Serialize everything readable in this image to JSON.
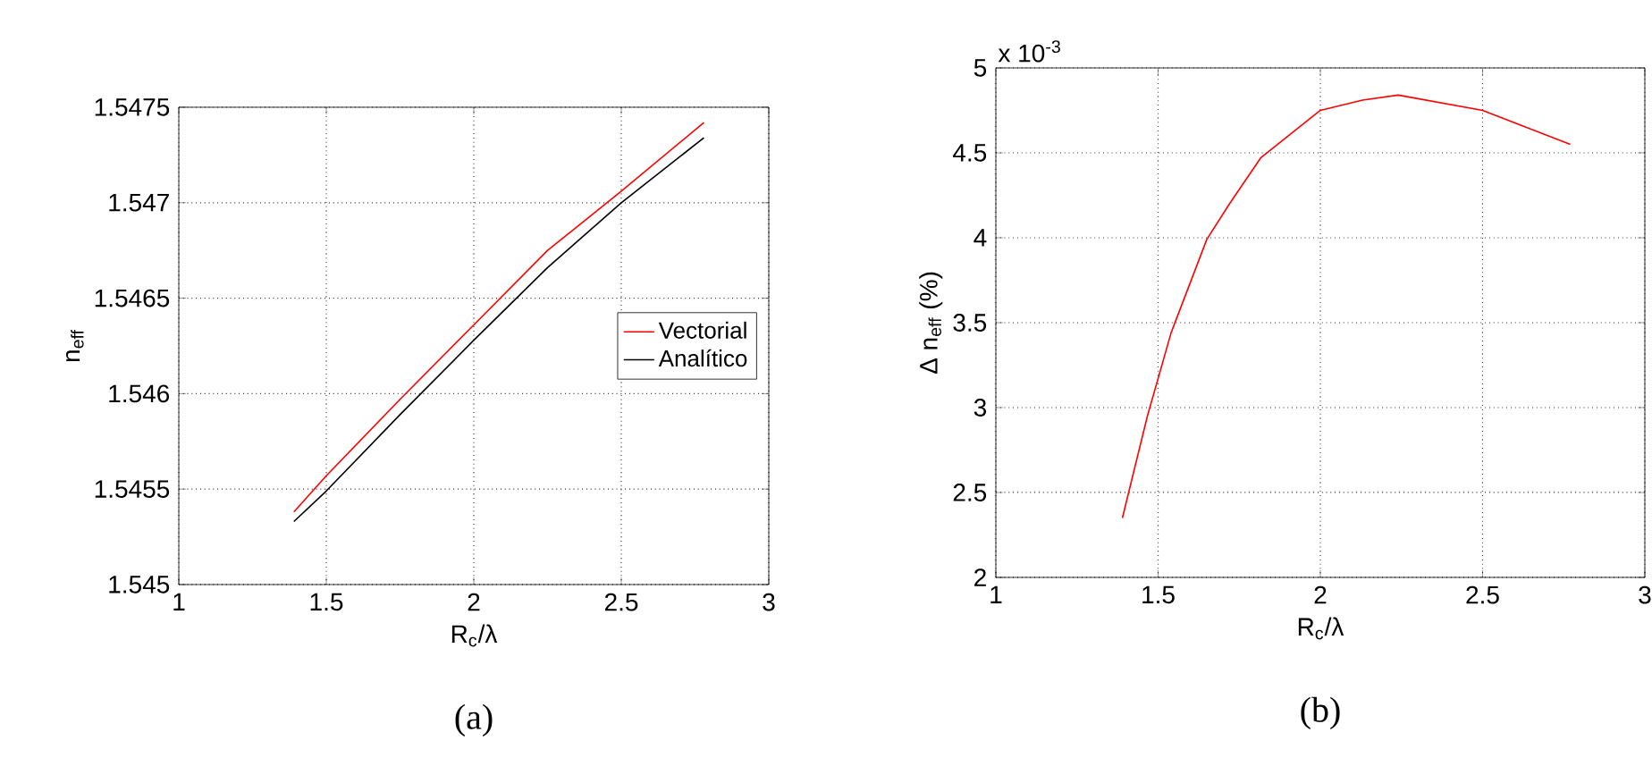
{
  "chart_data": [
    {
      "type": "line",
      "xlabel": "R$_{c}$/λ",
      "ylabel": "n$_{eff}$",
      "annotations": [
        "(a)"
      ],
      "xlim": [
        1,
        3
      ],
      "ylim": [
        1.545,
        1.5475
      ],
      "xticks": [
        1,
        1.5,
        2,
        2.5,
        3
      ],
      "yticks": [
        1.545,
        1.5455,
        1.546,
        1.5465,
        1.547,
        1.5475
      ],
      "grid": true,
      "legend": "right",
      "line_style": "solid",
      "series": [
        {
          "name": "Vectorial",
          "color": "#ff0000",
          "x": [
            1.39,
            1.5,
            1.75,
            2,
            2.25,
            2.5,
            2.78
          ],
          "values": [
            1.54538,
            1.54557,
            1.54597,
            1.54636,
            1.54675,
            1.54706,
            1.54742
          ]
        },
        {
          "name": "Analítico",
          "color": "#000000",
          "x": [
            1.39,
            1.5,
            1.75,
            2,
            2.25,
            2.5,
            2.78
          ],
          "values": [
            1.54533,
            1.54549,
            1.54589,
            1.54628,
            1.54666,
            1.547,
            1.54734
          ]
        }
      ]
    },
    {
      "type": "line",
      "xlabel": "R$_{c}$/λ",
      "ylabel": "Δ n$_{eff}$ (%)",
      "annotations": [
        "x 10$^{-3}$",
        "(b)"
      ],
      "xlim": [
        1,
        3
      ],
      "ylim": [
        2,
        5
      ],
      "xticks": [
        1,
        1.5,
        2,
        2.5,
        3
      ],
      "yticks": [
        2,
        2.5,
        3,
        3.5,
        4,
        4.5,
        5
      ],
      "grid": true,
      "legend": false,
      "line_style": "solid",
      "series": [
        {
          "color": "#ff0000",
          "x": [
            1.39,
            1.467,
            1.54,
            1.65,
            1.72,
            1.816,
            2,
            2.13,
            2.24,
            2.5,
            2.77
          ],
          "values": [
            2.35,
            2.95,
            3.44,
            3.99,
            4.2,
            4.47,
            4.75,
            4.81,
            4.84,
            4.75,
            4.55
          ]
        }
      ]
    }
  ]
}
